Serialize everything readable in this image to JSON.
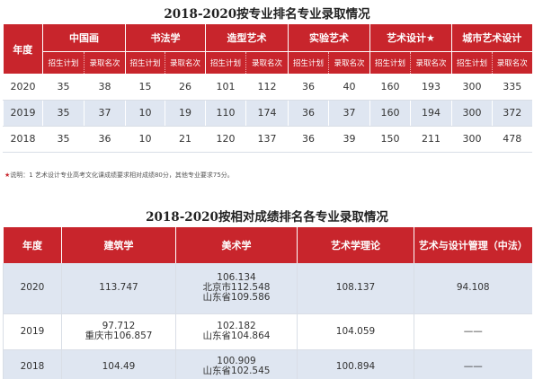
{
  "table1": {
    "title": "2018-2020按专业排名专业录取情况",
    "year_header": "年度",
    "groups": [
      "中国画",
      "书法学",
      "造型艺术",
      "实验艺术",
      "艺术设计★",
      "城市艺术设计"
    ],
    "sub_headers": [
      "招生计划",
      "录取名次"
    ],
    "rows": [
      {
        "year": "2020",
        "cells": [
          "35",
          "38",
          "15",
          "26",
          "101",
          "112",
          "36",
          "40",
          "160",
          "193",
          "300",
          "335"
        ]
      },
      {
        "year": "2019",
        "cells": [
          "35",
          "37",
          "10",
          "19",
          "110",
          "174",
          "36",
          "37",
          "160",
          "194",
          "300",
          "372"
        ]
      },
      {
        "year": "2018",
        "cells": [
          "35",
          "36",
          "10",
          "21",
          "120",
          "137",
          "36",
          "39",
          "150",
          "211",
          "300",
          "478"
        ]
      }
    ]
  },
  "note": {
    "star": "★",
    "text": "说明：1 艺术设计专业高考文化课成绩要求相对成绩80分，其他专业要求75分。"
  },
  "table2": {
    "title": "2018-2020按相对成绩排名各专业录取情况",
    "headers": [
      "年度",
      "建筑学",
      "美术学",
      "艺术学理论",
      "艺术与设计管理（中法）"
    ],
    "rows": [
      {
        "year": "2020",
        "c1": [
          "113.747"
        ],
        "c2": [
          "106.134",
          "北京市112.548",
          "山东省109.586"
        ],
        "c3": [
          "108.137"
        ],
        "c4": [
          "94.108"
        ]
      },
      {
        "year": "2019",
        "c1": [
          "97.712",
          "重庆市106.857"
        ],
        "c2": [
          "102.182",
          "山东省104.864"
        ],
        "c3": [
          "104.059"
        ],
        "c4": [
          "——"
        ]
      },
      {
        "year": "2018",
        "c1": [
          "104.49"
        ],
        "c2": [
          "100.909",
          "山东省102.545"
        ],
        "c3": [
          "100.894"
        ],
        "c4": [
          "——"
        ]
      }
    ]
  }
}
